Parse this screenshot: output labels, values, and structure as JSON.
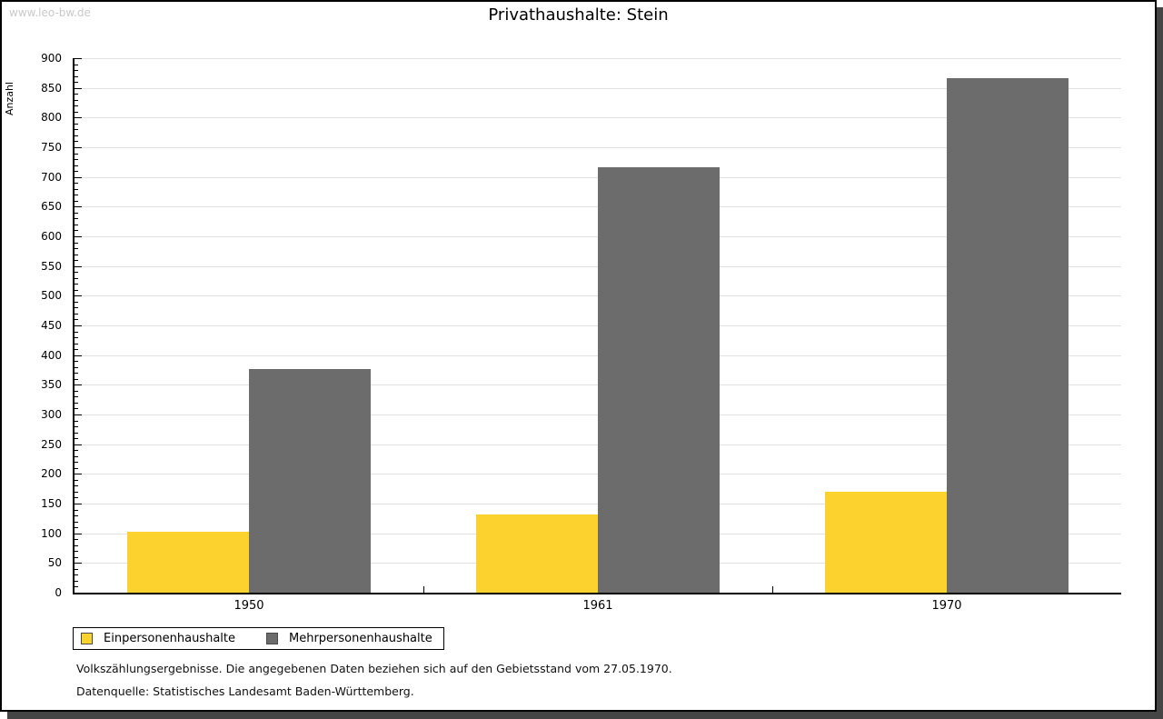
{
  "watermark": "www.leo-bw.de",
  "title": "Privathaushalte: Stein",
  "chart_data": {
    "type": "bar",
    "title": "Privathaushalte: Stein",
    "xlabel": "",
    "ylabel": "Anzahl",
    "categories": [
      "1950",
      "1961",
      "1970"
    ],
    "series": [
      {
        "name": "Einpersonenhaushalte",
        "color": "#FCD32E",
        "values": [
          103,
          132,
          170
        ]
      },
      {
        "name": "Mehrpersonenhaushalte",
        "color": "#6C6C6C",
        "values": [
          377,
          717,
          867
        ]
      }
    ],
    "ylim": [
      0,
      900
    ],
    "ytick_step": 50,
    "yminor_step": 10,
    "grid": true,
    "legend_position": "bottom-left"
  },
  "footnotes": [
    "Volkszählungsergebnisse. Die angegebenen Daten beziehen sich auf den Gebietsstand vom 27.05.1970.",
    "Datenquelle: Statistisches Landesamt Baden-Württemberg."
  ]
}
